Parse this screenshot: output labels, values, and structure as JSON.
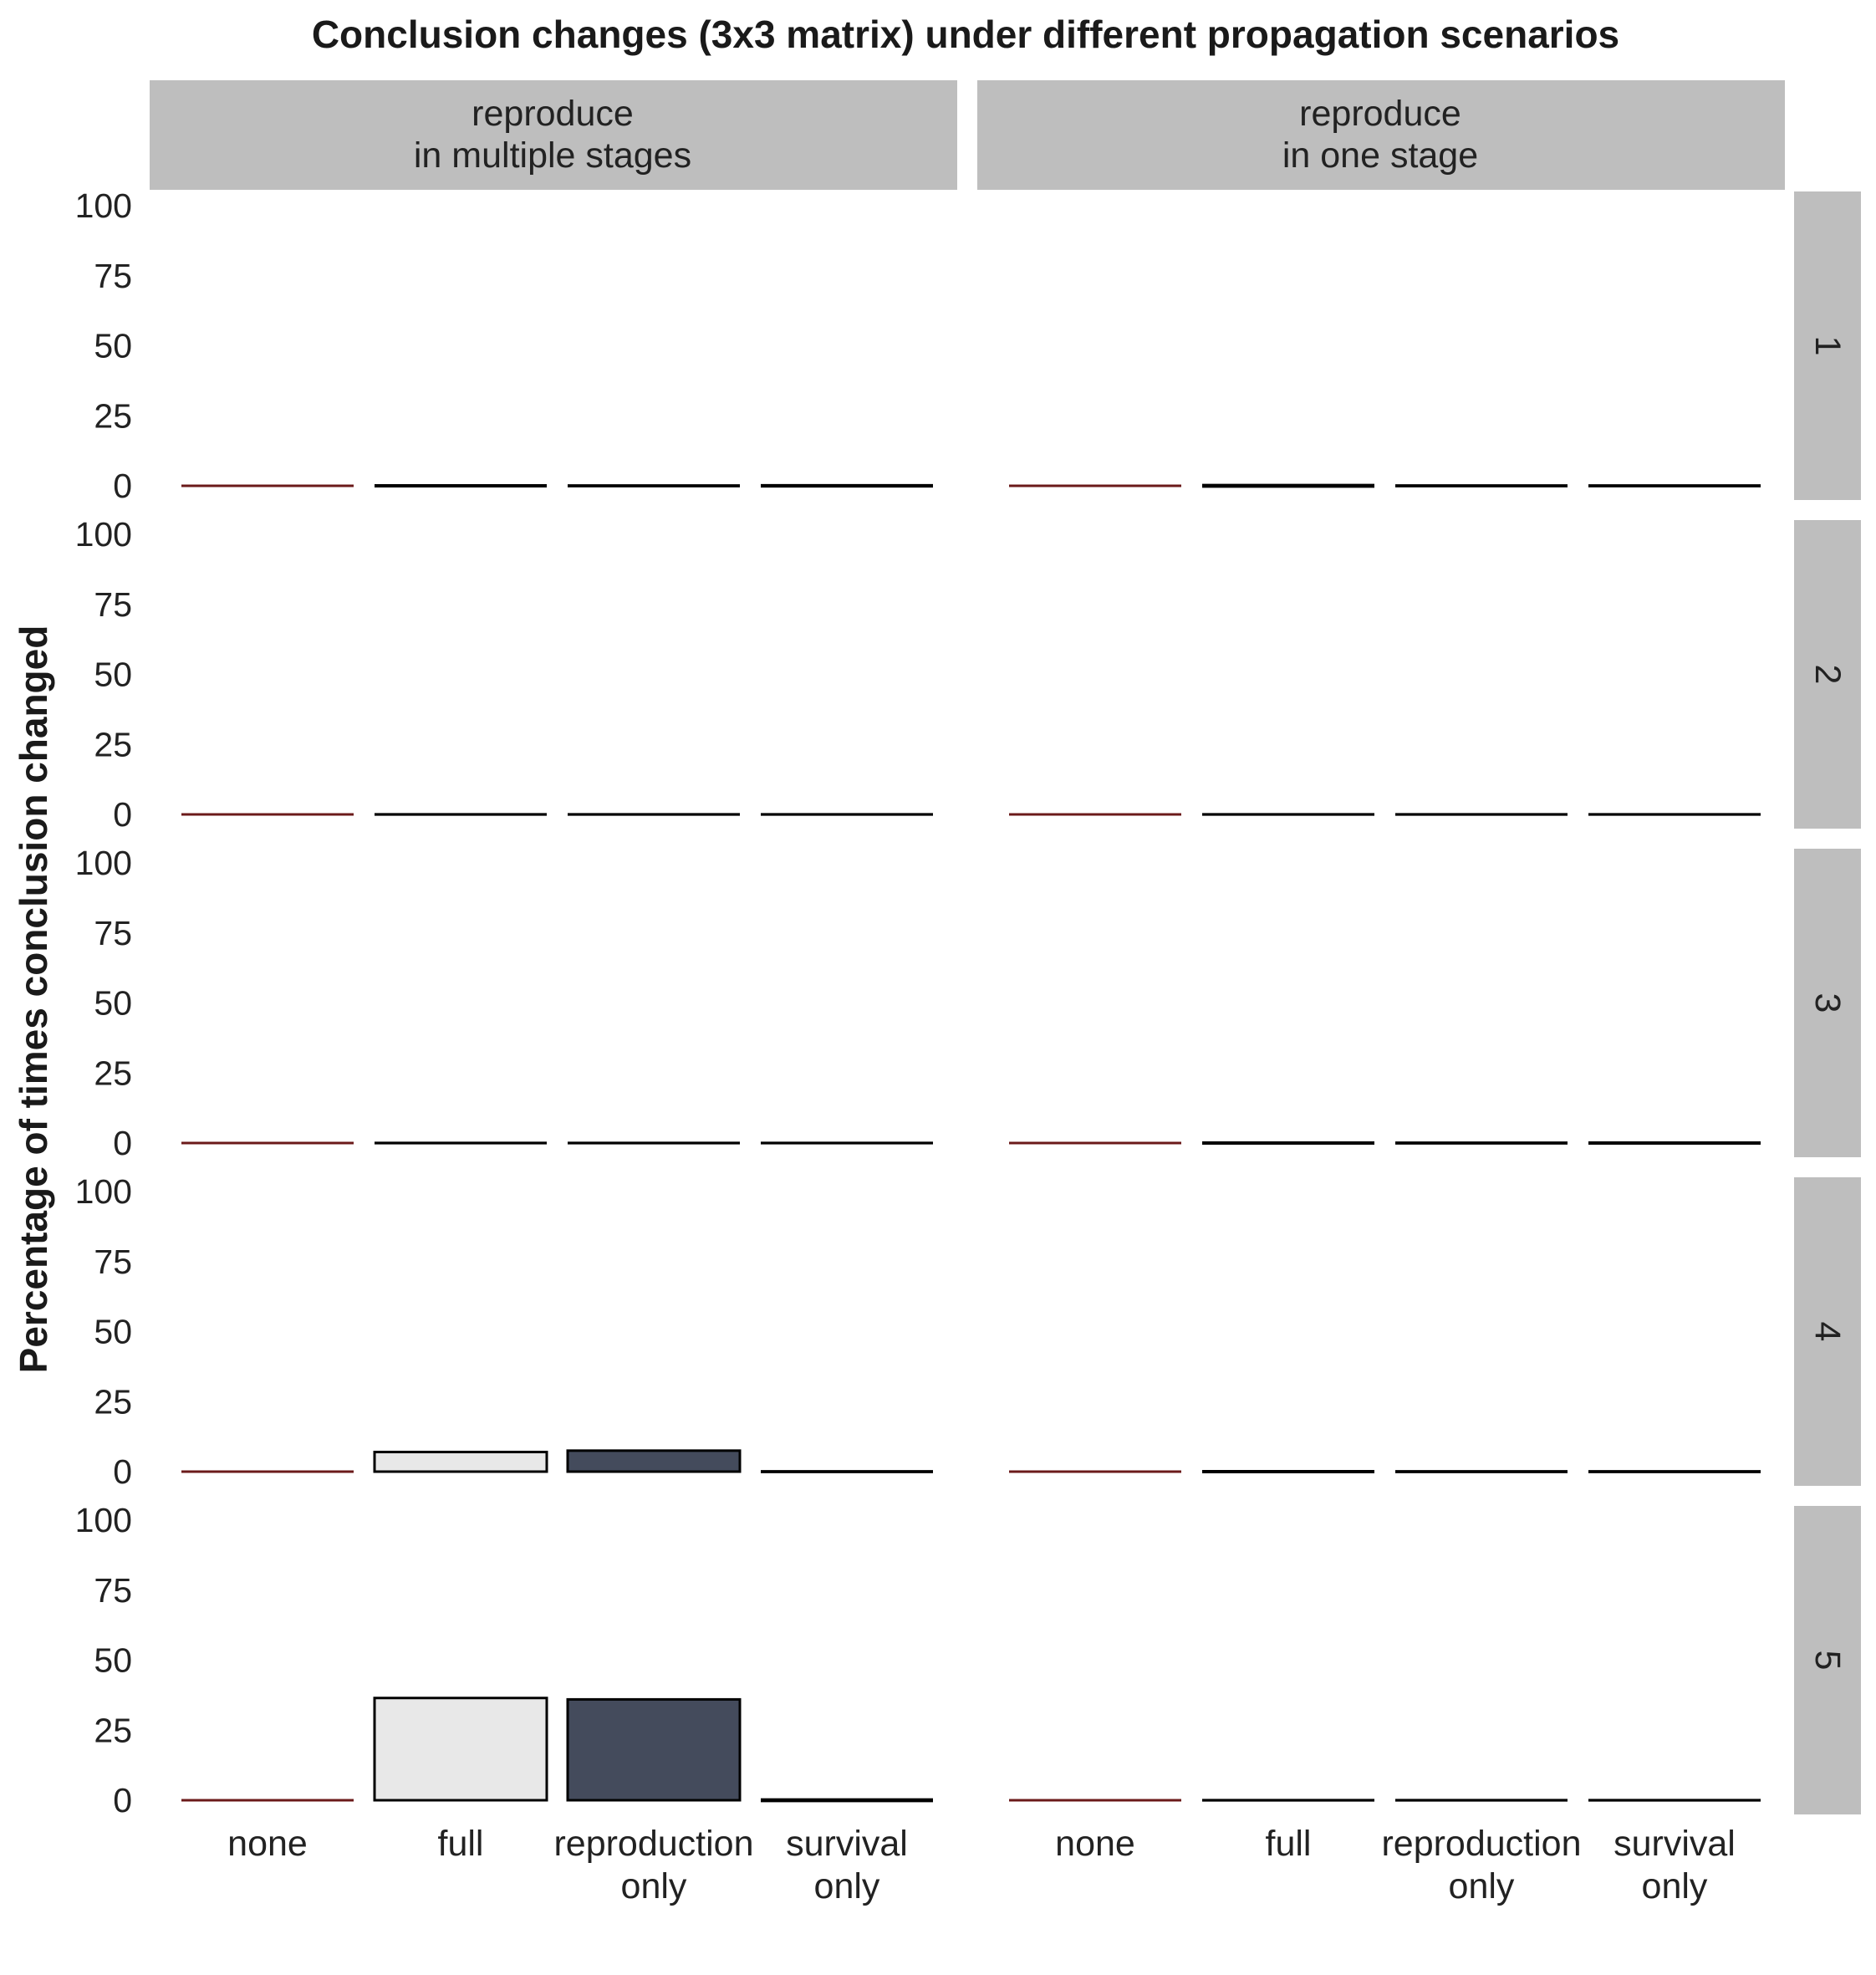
{
  "chart_data": {
    "type": "bar",
    "title": "Conclusion changes (3x3 matrix) under different propagation scenarios",
    "ylabel": "Percentage of times conclusion changed",
    "xlabel": "",
    "ylim": [
      0,
      100
    ],
    "yticks": [
      "0",
      "25",
      "50",
      "75",
      "100"
    ],
    "categories": [
      {
        "line1": "none",
        "line2": ""
      },
      {
        "line1": "full",
        "line2": ""
      },
      {
        "line1": "reproduction",
        "line2": "only"
      },
      {
        "line1": "survival",
        "line2": "only"
      }
    ],
    "columns": [
      {
        "line1": "reproduce",
        "line2": "in multiple stages"
      },
      {
        "line1": "reproduce",
        "line2": "in one stage"
      }
    ],
    "rows": [
      "1",
      "2",
      "3",
      "4",
      "5"
    ],
    "bar_colors": [
      "#6b1a1a",
      "#e8e8e8",
      "#444b5c",
      "#000000"
    ],
    "values": [
      [
        [
          0,
          0.3,
          0.2,
          0.4
        ],
        [
          0,
          0.5,
          0.2,
          0.2
        ]
      ],
      [
        [
          0,
          0.1,
          0.1,
          0.1
        ],
        [
          0,
          0.1,
          0.1,
          0.1
        ]
      ],
      [
        [
          0,
          0.1,
          0.1,
          0.1
        ],
        [
          0,
          0.3,
          0.2,
          0.3
        ]
      ],
      [
        [
          0,
          7,
          7.5,
          0.2
        ],
        [
          0,
          0.3,
          0.2,
          0.2
        ]
      ],
      [
        [
          0,
          36.5,
          36,
          0.5
        ],
        [
          0,
          0.1,
          0.1,
          0.1
        ]
      ]
    ],
    "legend": "none",
    "grid": false
  }
}
